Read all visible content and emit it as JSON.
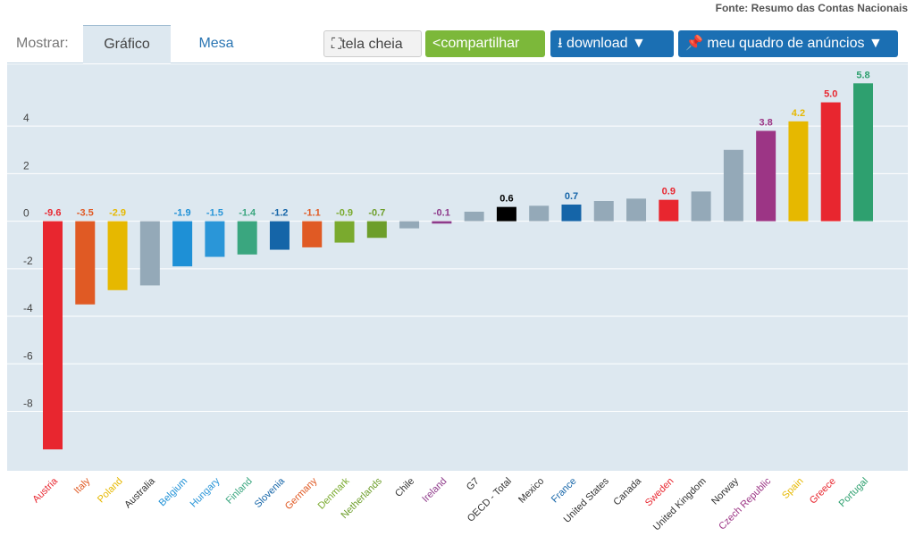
{
  "source": "Fonte: Resumo das Contas Nacionais",
  "toolbar": {
    "show_label": "Mostrar:",
    "tabs": [
      "Gráfico",
      "Mesa"
    ],
    "active_tab": "Gráfico",
    "fullscreen": "tela cheia",
    "share": "compartilhar",
    "download": "download ▼",
    "dashboard": "meu quadro de anúncios ▼"
  },
  "chart_data": {
    "type": "bar",
    "ylim": [
      -10.5,
      6.6
    ],
    "yticks": [
      4,
      2,
      0,
      -2,
      -4,
      -6,
      -8
    ],
    "grid": true,
    "legend": "none",
    "categories": [
      "Austria",
      "Italy",
      "Poland",
      "Australia",
      "Belgium",
      "Hungary",
      "Finland",
      "Slovenia",
      "Germany",
      "Denmark",
      "Netherlands",
      "Chile",
      "Ireland",
      "G7",
      "OECD - Total",
      "Mexico",
      "France",
      "United States",
      "Canada",
      "Sweden",
      "United Kingdom",
      "Norway",
      "Czech Republic",
      "Spain",
      "Greece",
      "Portugal"
    ],
    "values": [
      -9.6,
      -3.5,
      -2.9,
      -2.7,
      -1.9,
      -1.5,
      -1.4,
      -1.2,
      -1.1,
      -0.9,
      -0.7,
      -0.3,
      -0.1,
      0.4,
      0.6,
      0.65,
      0.7,
      0.85,
      0.95,
      0.9,
      1.25,
      3.0,
      3.8,
      4.2,
      5.0,
      5.8
    ],
    "data_labels": [
      "-9.6",
      "-3.5",
      "-2.9",
      "",
      "-1.9",
      "-1.5",
      "-1.4",
      "-1.2",
      "-1.1",
      "-0.9",
      "-0.7",
      "",
      "-0.1",
      "",
      "0.6",
      "",
      "0.7",
      "",
      "",
      "0.9",
      "",
      "",
      "3.8",
      "4.2",
      "5.0",
      "5.8"
    ],
    "colors": [
      "#e8262f",
      "#e05a24",
      "#e6b800",
      "#94a9b8",
      "#1e90d6",
      "#2a96d8",
      "#3aa67f",
      "#1565a8",
      "#e05a24",
      "#7aaa2e",
      "#6d9e2a",
      "#94a9b8",
      "#8e3a8a",
      "#94a9b8",
      "#000000",
      "#94a9b8",
      "#1565a8",
      "#94a9b8",
      "#94a9b8",
      "#e8262f",
      "#94a9b8",
      "#94a9b8",
      "#9c3585",
      "#e6b800",
      "#e8262f",
      "#2ea06f"
    ]
  }
}
